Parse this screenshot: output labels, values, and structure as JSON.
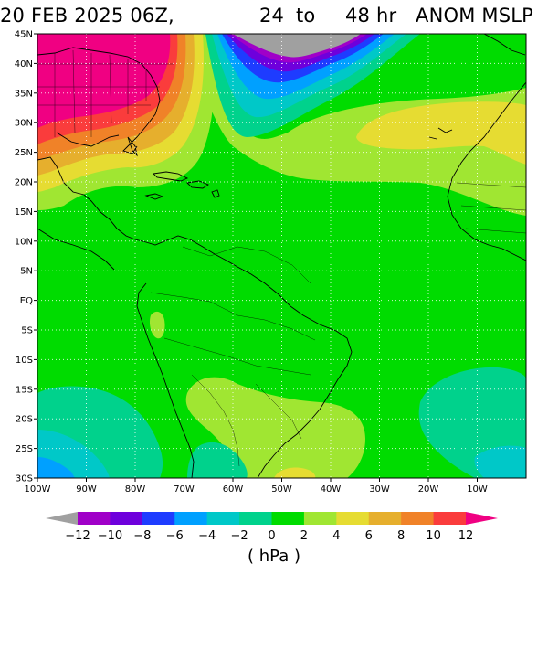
{
  "title": {
    "date_time": "20 FEB 2025 06Z,",
    "range_start": "24",
    "range_word": "to",
    "range_end": "48 hr",
    "product": "ANOM MSLP"
  },
  "map_data": {
    "variable": "MSLP anomaly",
    "units_label": "( hPa )",
    "lat_range": [
      -30,
      45
    ],
    "lon_range": [
      -100,
      0
    ],
    "lat_ticks": [
      "45N",
      "40N",
      "35N",
      "30N",
      "25N",
      "20N",
      "15N",
      "10N",
      "5N",
      "EQ",
      "5S",
      "10S",
      "15S",
      "20S",
      "25S",
      "30S"
    ],
    "lon_ticks": [
      "100W",
      "90W",
      "80W",
      "70W",
      "60W",
      "50W",
      "40W",
      "30W",
      "20W",
      "10W"
    ],
    "gridlines": true,
    "colorbar": {
      "levels": [
        "-12",
        "-10",
        "-8",
        "-6",
        "-4",
        "-2",
        "0",
        "2",
        "4",
        "6",
        "8",
        "10",
        "12"
      ],
      "colors": [
        "#a0a0a0",
        "#a000c8",
        "#6e00dc",
        "#1e3cff",
        "#00a0ff",
        "#00c8c8",
        "#00d28c",
        "#00dc00",
        "#a0e632",
        "#e6dc32",
        "#e6af2d",
        "#f08228",
        "#fa3c3c",
        "#f00082"
      ]
    },
    "features": [
      {
        "name": "strong positive anomaly over eastern United States",
        "max_hPa": 12
      },
      {
        "name": "negative anomaly center near 50W 43N",
        "min_hPa": -12
      },
      {
        "name": "positive band across central Atlantic",
        "value_hPa": 6
      },
      {
        "name": "positive anomaly over southern Brazil",
        "value_hPa": 4
      }
    ]
  }
}
